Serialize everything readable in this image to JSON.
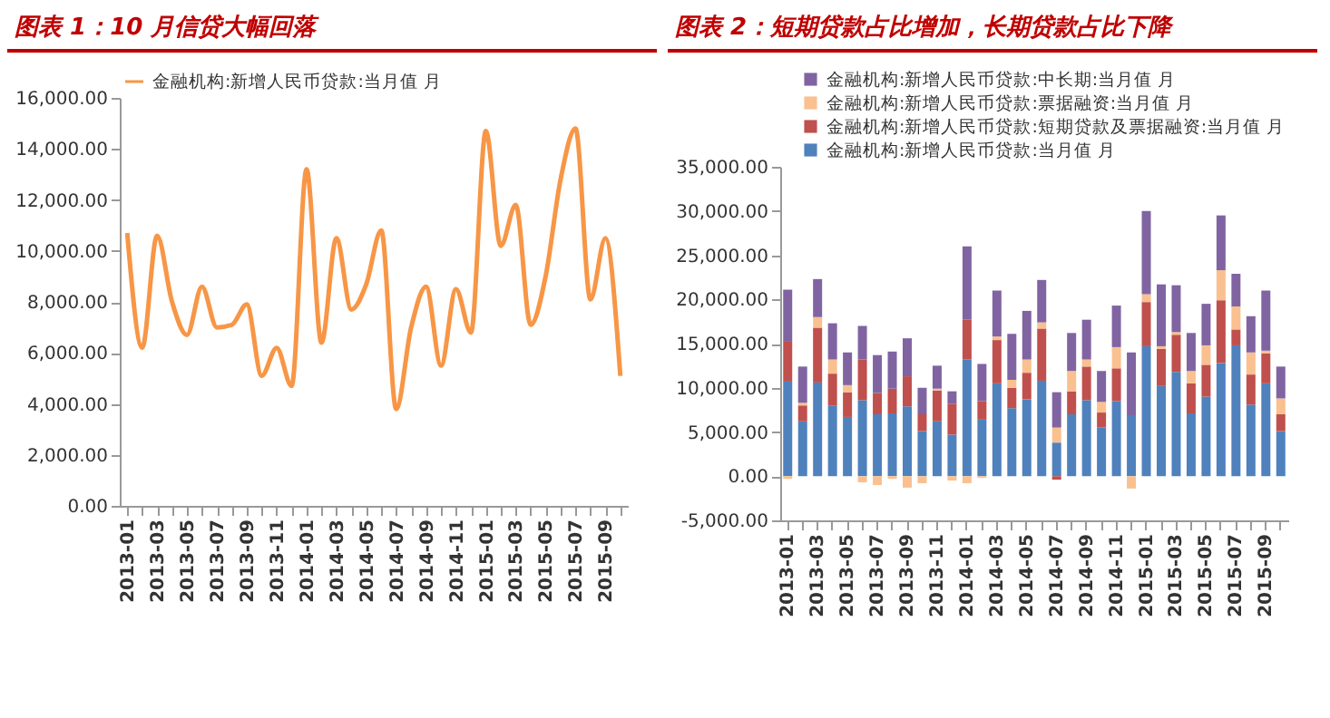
{
  "chart_data": [
    {
      "type": "line",
      "title": "图表 1：10 月信贷大幅回落",
      "categories": [
        "2013-01",
        null,
        "2013-03",
        null,
        "2013-05",
        null,
        "2013-07",
        null,
        "2013-09",
        null,
        "2013-11",
        null,
        "2014-01",
        null,
        "2014-03",
        null,
        "2014-05",
        null,
        "2014-07",
        null,
        "2014-09",
        null,
        "2014-11",
        null,
        "2015-01",
        null,
        "2015-03",
        null,
        "2015-05",
        null,
        "2015-07",
        null,
        "2015-09",
        null
      ],
      "series": [
        {
          "name": "金融机构:新增人民币贷款:当月值 月",
          "color": "#f79646",
          "values": [
            10700,
            6200,
            10600,
            8000,
            6700,
            8600,
            7000,
            7100,
            7900,
            5100,
            6200,
            4700,
            13200,
            6400,
            10500,
            7700,
            8700,
            10800,
            3800,
            7000,
            8600,
            5500,
            8500,
            6800,
            14700,
            10200,
            11800,
            7100,
            9000,
            12800,
            14800,
            8100,
            10500,
            5100
          ]
        }
      ],
      "ylim": [
        0,
        16000
      ],
      "yticks": [
        {
          "value": 0,
          "label": "0.00"
        },
        {
          "value": 2000,
          "label": "2,000.00"
        },
        {
          "value": 4000,
          "label": "4,000.00"
        },
        {
          "value": 6000,
          "label": "6,000.00"
        },
        {
          "value": 8000,
          "label": "8,000.00"
        },
        {
          "value": 10000,
          "label": "10,000.00"
        },
        {
          "value": 12000,
          "label": "12,000.00"
        },
        {
          "value": 14000,
          "label": "14,000.00"
        },
        {
          "value": 16000,
          "label": "16,000.00"
        }
      ],
      "grid": false,
      "legend": "top",
      "marker": "none",
      "line_style": "solid"
    },
    {
      "type": "bar",
      "stacked": true,
      "title": "图表 2：短期贷款占比增加，长期贷款占比下降",
      "categories": [
        "2013-01",
        null,
        "2013-03",
        null,
        "2013-05",
        null,
        "2013-07",
        null,
        "2013-09",
        null,
        "2013-11",
        null,
        "2014-01",
        null,
        "2014-03",
        null,
        "2014-05",
        null,
        "2014-07",
        null,
        "2014-09",
        null,
        "2014-11",
        null,
        "2015-01",
        null,
        "2015-03",
        null,
        "2015-05",
        null,
        "2015-07",
        null,
        "2015-09",
        null
      ],
      "series": [
        {
          "name": "金融机构:新增人民币贷款:当月值 月",
          "color": "#4f81bd",
          "values": [
            10700,
            6200,
            10600,
            8000,
            6700,
            8600,
            7000,
            7100,
            7900,
            5100,
            6200,
            4700,
            13200,
            6400,
            10500,
            7700,
            8700,
            10800,
            3800,
            7000,
            8600,
            5500,
            8500,
            6800,
            14700,
            10200,
            11800,
            7100,
            9000,
            12800,
            14800,
            8100,
            10500,
            5100
          ]
        },
        {
          "name": "金融机构:新增人民币贷款:短期贷款及票据融资:当月值 月",
          "color": "#c0504d",
          "values": [
            4600,
            1800,
            6200,
            3600,
            2800,
            4600,
            2400,
            2800,
            3400,
            1900,
            3500,
            3500,
            4500,
            2100,
            4900,
            2300,
            3000,
            5900,
            -400,
            2600,
            3800,
            1700,
            3700,
            0,
            5000,
            4200,
            4200,
            3400,
            3600,
            7100,
            1800,
            3400,
            3400,
            1900
          ]
        },
        {
          "name": "金融机构:新增人民币贷款:票据融资:当月值 月",
          "color": "#fac090",
          "values": [
            -300,
            300,
            1200,
            1600,
            800,
            -700,
            -1000,
            -300,
            -1300,
            -800,
            200,
            -500,
            -800,
            -200,
            400,
            900,
            1500,
            700,
            1700,
            2300,
            800,
            1200,
            2400,
            -1400,
            900,
            300,
            300,
            1400,
            2200,
            3400,
            2600,
            2500,
            300,
            1800
          ]
        },
        {
          "name": "金融机构:新增人民币贷款:中长期:当月值 月",
          "color": "#8064a2",
          "values": [
            5800,
            4100,
            4300,
            4100,
            3700,
            3800,
            4300,
            4200,
            4300,
            3000,
            2600,
            1400,
            8300,
            4200,
            5200,
            5200,
            5500,
            4800,
            4000,
            4300,
            4500,
            3500,
            4700,
            7200,
            9400,
            7000,
            5300,
            4300,
            4700,
            6200,
            3700,
            4100,
            6800,
            3600
          ]
        }
      ],
      "ylim": [
        -5000,
        35000
      ],
      "yticks": [
        {
          "value": -5000,
          "label": "-5,000.00"
        },
        {
          "value": 0,
          "label": "0.00"
        },
        {
          "value": 5000,
          "label": "5,000.00"
        },
        {
          "value": 10000,
          "label": "10,000.00"
        },
        {
          "value": 15000,
          "label": "15,000.00"
        },
        {
          "value": 20000,
          "label": "20,000.00"
        },
        {
          "value": 25000,
          "label": "25,000.00"
        },
        {
          "value": 30000,
          "label": "30,000.00"
        },
        {
          "value": 35000,
          "label": "35,000.00"
        }
      ],
      "grid": false,
      "legend": "top left"
    }
  ]
}
